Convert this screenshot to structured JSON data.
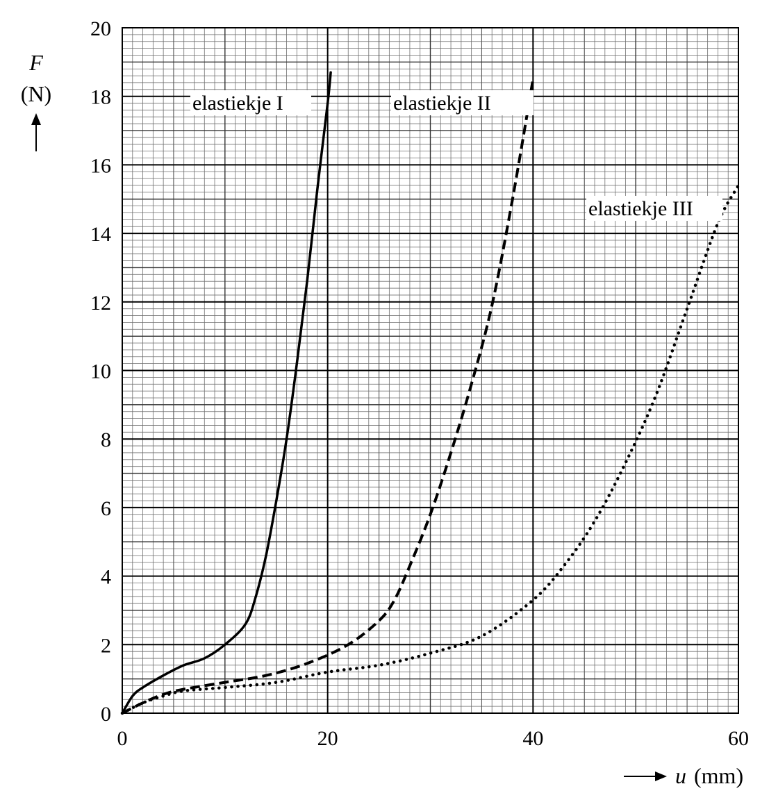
{
  "chart_data": {
    "type": "line",
    "x_axis": {
      "variable": "u",
      "unit": "(mm)",
      "range": [
        0,
        60
      ],
      "ticks": [
        "0",
        "20",
        "40",
        "60"
      ],
      "minor_gridlines_per_major": 20
    },
    "y_axis": {
      "variable": "F",
      "unit": "(N)",
      "range": [
        0,
        20
      ],
      "ticks": [
        "0",
        "2",
        "4",
        "6",
        "8",
        "10",
        "12",
        "14",
        "16",
        "18",
        "20"
      ],
      "minor_gridlines_per_major": 10
    },
    "grid": true,
    "series": [
      {
        "name": "elastiekje I",
        "line_style": "solid",
        "x": [
          0,
          1,
          2,
          4,
          6,
          8,
          10,
          12,
          13,
          14,
          15,
          16,
          17,
          18,
          19,
          20,
          20.3
        ],
        "y": [
          0,
          0.5,
          0.75,
          1.1,
          1.4,
          1.6,
          2.0,
          2.6,
          3.4,
          4.6,
          6.2,
          8.0,
          10.2,
          12.6,
          15.3,
          17.8,
          18.7
        ]
      },
      {
        "name": "elastiekje II",
        "line_style": "dashed",
        "x": [
          0,
          2,
          4,
          6,
          10,
          14,
          18,
          22,
          25,
          26.5,
          28,
          30,
          32,
          34,
          36,
          38,
          40
        ],
        "y": [
          0,
          0.3,
          0.55,
          0.7,
          0.9,
          1.1,
          1.45,
          2.0,
          2.7,
          3.3,
          4.3,
          5.8,
          7.6,
          9.6,
          11.9,
          15.0,
          18.5
        ]
      },
      {
        "name": "elastiekje III",
        "line_style": "dotted",
        "x": [
          0,
          2,
          4,
          6,
          10,
          15,
          20,
          25,
          30,
          35,
          40,
          43,
          46,
          49,
          52,
          55,
          58,
          60
        ],
        "y": [
          0,
          0.3,
          0.5,
          0.65,
          0.75,
          0.9,
          1.2,
          1.4,
          1.75,
          2.25,
          3.3,
          4.3,
          5.6,
          7.3,
          9.3,
          11.8,
          14.3,
          15.4
        ]
      }
    ]
  }
}
